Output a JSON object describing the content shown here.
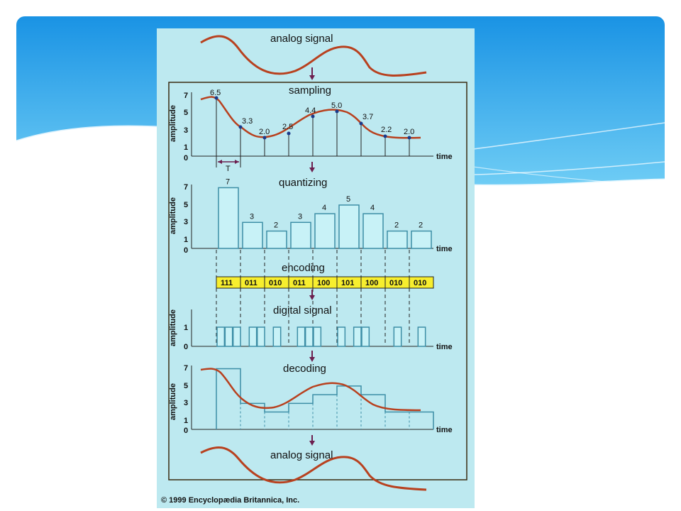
{
  "colors": {
    "slide_top": "#1e9be8",
    "slide_mid": "#57c1f2",
    "panel_bg": "#bde9f0",
    "panel_border": "#3a2a10",
    "curve": "#b8411f",
    "bar_fill": "#c8f2f7",
    "bar_stroke": "#3d8ea6",
    "code_fill": "#f7ee2e",
    "arrow": "#6c1f4f"
  },
  "titles": {
    "analog_top": "analog signal",
    "sampling": "sampling",
    "quantizing": "quantizing",
    "encoding": "encoding",
    "digital": "digital signal",
    "decoding": "decoding",
    "analog_bottom": "analog signal"
  },
  "labels": {
    "amplitude": "amplitude",
    "time": "time",
    "period": "T",
    "copyright": "© 1999 Encyclopædia Britannica, Inc."
  },
  "sampling": {
    "values": [
      "6.5",
      "3.3",
      "2.0",
      "2.5",
      "4.4",
      "5.0",
      "3.7",
      "2.2",
      "2.0"
    ],
    "ticks": [
      "7",
      "5",
      "3",
      "1",
      "0"
    ]
  },
  "quantizing": {
    "values": [
      7,
      3,
      2,
      3,
      4,
      5,
      4,
      2,
      2
    ],
    "ticks": [
      "7",
      "5",
      "3",
      "1",
      "0"
    ]
  },
  "encoding": {
    "codes": [
      "111",
      "011",
      "010",
      "011",
      "100",
      "101",
      "100",
      "010",
      "010"
    ]
  },
  "digital": {
    "ticks": [
      "1",
      "0"
    ]
  },
  "decoding": {
    "ticks": [
      "7",
      "5",
      "3",
      "1",
      "0"
    ]
  }
}
